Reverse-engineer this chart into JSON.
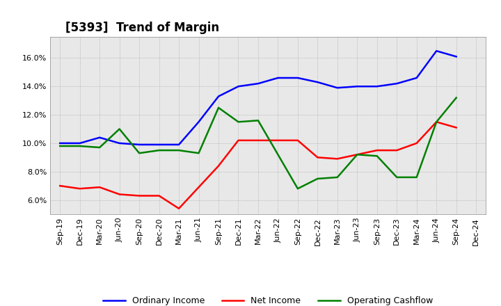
{
  "title": "[5393]  Trend of Margin",
  "x_labels": [
    "Sep-19",
    "Dec-19",
    "Mar-20",
    "Jun-20",
    "Sep-20",
    "Dec-20",
    "Mar-21",
    "Jun-21",
    "Sep-21",
    "Dec-21",
    "Mar-22",
    "Jun-22",
    "Sep-22",
    "Dec-22",
    "Mar-23",
    "Jun-23",
    "Sep-23",
    "Dec-23",
    "Mar-24",
    "Jun-24",
    "Sep-24",
    "Dec-24"
  ],
  "ordinary_income": [
    10.0,
    10.0,
    10.4,
    10.0,
    9.9,
    9.9,
    9.9,
    11.5,
    13.3,
    14.0,
    14.2,
    14.6,
    14.6,
    14.3,
    13.9,
    14.0,
    14.0,
    14.2,
    14.6,
    16.5,
    16.1,
    null
  ],
  "net_income": [
    7.0,
    6.8,
    6.9,
    6.4,
    6.3,
    6.3,
    5.4,
    6.9,
    8.4,
    10.2,
    10.2,
    10.2,
    10.2,
    9.0,
    8.9,
    9.2,
    9.5,
    9.5,
    10.0,
    11.5,
    11.1,
    null
  ],
  "operating_cashflow": [
    9.8,
    9.8,
    9.7,
    11.0,
    9.3,
    9.5,
    9.5,
    9.3,
    12.5,
    11.5,
    11.6,
    null,
    6.8,
    7.5,
    7.6,
    9.2,
    9.1,
    7.6,
    7.6,
    11.5,
    13.2,
    null
  ],
  "ylim": [
    5.0,
    17.5
  ],
  "yticks": [
    6.0,
    8.0,
    10.0,
    12.0,
    14.0,
    16.0
  ],
  "line_colors": {
    "ordinary_income": "#0000ff",
    "net_income": "#ff0000",
    "operating_cashflow": "#008000"
  },
  "legend_labels": [
    "Ordinary Income",
    "Net Income",
    "Operating Cashflow"
  ],
  "background_color": "#ffffff",
  "plot_bg_color": "#e8e8e8",
  "grid_color": "#999999",
  "title_fontsize": 12,
  "tick_fontsize": 8,
  "legend_fontsize": 9
}
